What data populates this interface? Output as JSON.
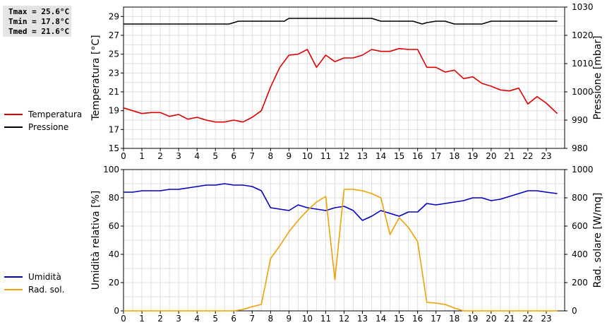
{
  "stats": {
    "tmax": "Tmax = 25.6°C",
    "tmin": "Tmin = 17.8°C",
    "tmed": "Tmed = 21.6°C"
  },
  "chart_data": [
    {
      "type": "line",
      "ylabel": "Temperatura [°C]",
      "y2label": "Pressione [mbar]",
      "xlim": [
        0,
        24
      ],
      "ylim": [
        15,
        30
      ],
      "y2lim": [
        980,
        1030
      ],
      "xticks": [
        0,
        1,
        2,
        3,
        4,
        5,
        6,
        7,
        8,
        9,
        10,
        11,
        12,
        13,
        14,
        15,
        16,
        17,
        18,
        19,
        20,
        21,
        22,
        23
      ],
      "yticks": [
        15,
        17,
        19,
        21,
        23,
        25,
        27,
        29
      ],
      "y2ticks": [
        980,
        990,
        1000,
        1010,
        1020,
        1030
      ],
      "grid": true,
      "legend_position": "left",
      "series": [
        {
          "name": "Temperatura",
          "axis": "left",
          "color": "#e00000",
          "x": [
            0,
            0.5,
            1,
            1.5,
            2,
            2.5,
            3,
            3.5,
            4,
            4.5,
            5,
            5.5,
            6,
            6.5,
            7,
            7.5,
            8,
            8.5,
            9,
            9.5,
            10,
            10.5,
            11,
            11.5,
            12,
            12.5,
            13,
            13.5,
            14,
            14.5,
            15,
            15.5,
            16,
            16.5,
            17,
            17.5,
            18,
            18.5,
            19,
            19.5,
            20,
            20.5,
            21,
            21.5,
            22,
            22.5,
            23,
            23.6
          ],
          "values": [
            19.3,
            19.0,
            18.7,
            18.8,
            18.8,
            18.4,
            18.6,
            18.1,
            18.3,
            18.0,
            17.8,
            17.8,
            18.0,
            17.8,
            18.3,
            19.0,
            21.5,
            23.6,
            24.9,
            25.0,
            25.5,
            23.6,
            24.9,
            24.2,
            24.6,
            24.6,
            24.9,
            25.5,
            25.3,
            25.3,
            25.6,
            25.5,
            25.5,
            23.6,
            23.6,
            23.1,
            23.3,
            22.4,
            22.6,
            21.9,
            21.6,
            21.2,
            21.1,
            21.4,
            19.7,
            20.5,
            19.8,
            18.7
          ]
        },
        {
          "name": "Pressione",
          "axis": "right",
          "color": "#000000",
          "x": [
            0,
            0.5,
            1,
            1.5,
            2,
            2.5,
            3,
            3.5,
            4,
            4.5,
            5,
            5.5,
            5.75,
            6.25,
            6.75,
            7.25,
            7.75,
            8.25,
            8.75,
            9,
            9.5,
            10,
            10.5,
            11,
            11.5,
            12,
            12.5,
            13,
            13.5,
            14,
            14.5,
            15,
            15.5,
            15.75,
            16.25,
            16.5,
            17,
            17.5,
            18,
            18.5,
            19,
            19.5,
            20,
            20.5,
            21,
            21.5,
            22,
            22.5,
            23,
            23.6
          ],
          "values": [
            1024,
            1024,
            1024,
            1024,
            1024,
            1024,
            1024,
            1024,
            1024,
            1024,
            1024,
            1024,
            1024,
            1025,
            1025,
            1025,
            1025,
            1025,
            1025,
            1026,
            1026,
            1026,
            1026,
            1026,
            1026,
            1026,
            1026,
            1026,
            1026,
            1025,
            1025,
            1025,
            1025,
            1025,
            1024,
            1024.5,
            1025,
            1025,
            1024,
            1024,
            1024,
            1024,
            1025,
            1025,
            1025,
            1025,
            1025,
            1025,
            1025,
            1025
          ]
        }
      ]
    },
    {
      "type": "line",
      "ylabel": "Umidità relativa [%]",
      "y2label": "Rad. solare [W/mq]",
      "xlim": [
        0,
        24
      ],
      "ylim": [
        0,
        100
      ],
      "y2lim": [
        0,
        1000
      ],
      "xticks": [
        0,
        1,
        2,
        3,
        4,
        5,
        6,
        7,
        8,
        9,
        10,
        11,
        12,
        13,
        14,
        15,
        16,
        17,
        18,
        19,
        20,
        21,
        22,
        23
      ],
      "yticks": [
        0,
        20,
        40,
        60,
        80,
        100
      ],
      "y2ticks": [
        0,
        200,
        400,
        600,
        800,
        1000
      ],
      "grid": true,
      "legend_position": "left",
      "series": [
        {
          "name": "Umidità",
          "axis": "left",
          "color": "#0000c8",
          "x": [
            0,
            0.5,
            1,
            1.5,
            2,
            2.5,
            3,
            3.5,
            4,
            4.5,
            5,
            5.5,
            6,
            6.5,
            7,
            7.5,
            8,
            8.5,
            9,
            9.5,
            10,
            10.5,
            11,
            11.5,
            12,
            12.5,
            13,
            13.5,
            14,
            14.5,
            15,
            15.5,
            16,
            16.5,
            17,
            17.5,
            18,
            18.5,
            19,
            19.5,
            20,
            20.5,
            21,
            21.5,
            22,
            22.5,
            23,
            23.6
          ],
          "values": [
            84,
            84,
            85,
            85,
            85,
            86,
            86,
            87,
            88,
            89,
            89,
            90,
            89,
            89,
            88,
            85,
            73,
            72,
            71,
            75,
            73,
            72,
            71,
            73,
            74,
            71,
            64,
            67,
            71,
            69,
            67,
            70,
            70,
            76,
            75,
            76,
            77,
            78,
            80,
            80,
            78,
            79,
            81,
            83,
            85,
            85,
            84,
            83
          ]
        },
        {
          "name": "Rad. sol.",
          "axis": "right",
          "color": "#f0a000",
          "x": [
            0,
            1,
            2,
            3,
            4,
            5,
            6,
            6.5,
            7,
            7.5,
            8,
            8.5,
            9,
            9.5,
            10,
            10.5,
            11,
            11.5,
            12,
            12.5,
            13,
            13.5,
            14,
            14.5,
            15,
            15.5,
            16,
            16.5,
            17,
            17.5,
            18,
            18.5,
            19,
            20,
            21,
            22,
            23,
            23.6
          ],
          "values": [
            0,
            0,
            0,
            0,
            0,
            0,
            0,
            10,
            30,
            45,
            370,
            460,
            560,
            640,
            710,
            770,
            810,
            220,
            860,
            860,
            850,
            830,
            800,
            540,
            660,
            590,
            490,
            60,
            55,
            45,
            20,
            0,
            0,
            0,
            0,
            0,
            0,
            0
          ]
        }
      ]
    }
  ]
}
